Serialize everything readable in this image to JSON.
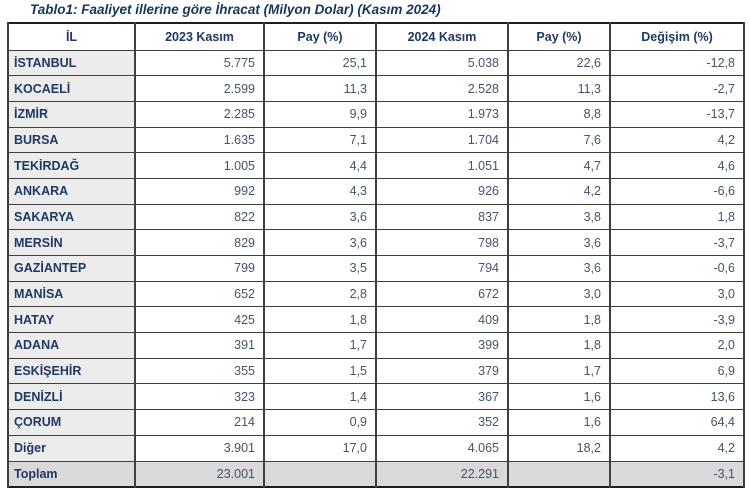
{
  "title": "Tablo1: Faaliyet illerine göre İhracat (Milyon Dolar) (Kasım 2024)",
  "table": {
    "headers": [
      "İL",
      "2023 Kasım",
      "Pay (%)",
      "2024 Kasım",
      "Pay (%)",
      "Değişim (%)"
    ],
    "rows": [
      {
        "il": "İSTANBUL",
        "values": [
          "5.775",
          "25,1",
          "5.038",
          "22,6",
          "-12,8"
        ]
      },
      {
        "il": "KOCAELİ",
        "values": [
          "2.599",
          "11,3",
          "2.528",
          "11,3",
          "-2,7"
        ]
      },
      {
        "il": "İZMİR",
        "values": [
          "2.285",
          "9,9",
          "1.973",
          "8,8",
          "-13,7"
        ]
      },
      {
        "il": "BURSA",
        "values": [
          "1.635",
          "7,1",
          "1.704",
          "7,6",
          "4,2"
        ]
      },
      {
        "il": "TEKİRDAĞ",
        "values": [
          "1.005",
          "4,4",
          "1.051",
          "4,7",
          "4,6"
        ]
      },
      {
        "il": "ANKARA",
        "values": [
          "992",
          "4,3",
          "926",
          "4,2",
          "-6,6"
        ]
      },
      {
        "il": "SAKARYA",
        "values": [
          "822",
          "3,6",
          "837",
          "3,8",
          "1,8"
        ]
      },
      {
        "il": "MERSİN",
        "values": [
          "829",
          "3,6",
          "798",
          "3,6",
          "-3,7"
        ]
      },
      {
        "il": "GAZİANTEP",
        "values": [
          "799",
          "3,5",
          "794",
          "3,6",
          "-0,6"
        ]
      },
      {
        "il": "MANİSA",
        "values": [
          "652",
          "2,8",
          "672",
          "3,0",
          "3,0"
        ]
      },
      {
        "il": "HATAY",
        "values": [
          "425",
          "1,8",
          "409",
          "1,8",
          "-3,9"
        ]
      },
      {
        "il": "ADANA",
        "values": [
          "391",
          "1,7",
          "399",
          "1,8",
          "2,0"
        ]
      },
      {
        "il": "ESKİŞEHİR",
        "values": [
          "355",
          "1,5",
          "379",
          "1,7",
          "6,9"
        ]
      },
      {
        "il": "DENİZLİ",
        "values": [
          "323",
          "1,4",
          "367",
          "1,6",
          "13,6"
        ]
      },
      {
        "il": "ÇORUM",
        "values": [
          "214",
          "0,9",
          "352",
          "1,6",
          "64,4"
        ]
      },
      {
        "il": "Diğer",
        "values": [
          "3.901",
          "17,0",
          "4.065",
          "18,2",
          "4,2"
        ]
      }
    ],
    "total_row": {
      "il": "Toplam",
      "values": [
        "23.001",
        "",
        "22.291",
        "",
        "-3,1"
      ]
    }
  },
  "colors": {
    "title_text": "#17365D",
    "header_text": "#1F3864",
    "label_text": "#1F3864",
    "number_text": "#44546A",
    "label_cell_bg": "#ECECEC",
    "total_row_bg": "#D9D9D9",
    "border": "#3F3F3F"
  }
}
